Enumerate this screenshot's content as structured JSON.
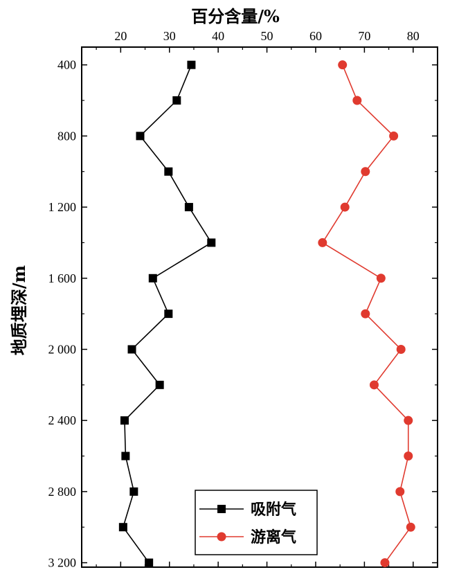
{
  "chart_data": {
    "type": "line",
    "title": "",
    "xlabel": "百分含量/%",
    "ylabel": "地质埋深/m",
    "x_axis_position": "top",
    "y_axis_inverted": true,
    "xlim": [
      12,
      85
    ],
    "ylim": [
      300,
      3225
    ],
    "x_ticks": [
      20,
      30,
      40,
      50,
      60,
      70,
      80
    ],
    "x_tick_labels": [
      "20",
      "30",
      "40",
      "50",
      "60",
      "70",
      "80"
    ],
    "y_ticks": [
      400,
      800,
      1200,
      1600,
      2000,
      2400,
      2800,
      3200
    ],
    "y_tick_labels": [
      "400",
      "800",
      "1 200",
      "1 600",
      "2 000",
      "2 400",
      "2 800",
      "3 200"
    ],
    "grid": false,
    "legend_position": "bottom-center",
    "depths": [
      400,
      600,
      800,
      1000,
      1200,
      1400,
      1600,
      1800,
      2000,
      2200,
      2400,
      2600,
      2800,
      3000,
      3200
    ],
    "series": [
      {
        "name": "吸附气",
        "color": "#000000",
        "marker": "square",
        "values": [
          34.5,
          31.5,
          24.0,
          29.8,
          34.0,
          38.6,
          26.6,
          29.8,
          22.3,
          28.0,
          20.8,
          21.0,
          22.7,
          20.5,
          25.8
        ]
      },
      {
        "name": "游离气",
        "color": "#e03a2f",
        "marker": "circle",
        "values": [
          65.5,
          68.5,
          76.0,
          70.2,
          66.0,
          61.4,
          73.4,
          70.2,
          77.5,
          72.0,
          79.0,
          79.0,
          77.3,
          79.5,
          74.2
        ]
      }
    ]
  }
}
